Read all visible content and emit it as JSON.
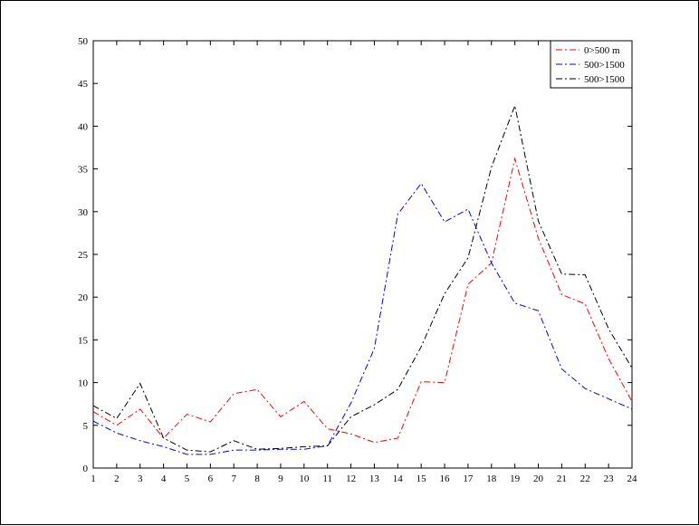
{
  "chart_data": {
    "type": "line",
    "title": "",
    "xlabel": "",
    "ylabel": "",
    "xlim": [
      1,
      24
    ],
    "ylim": [
      0,
      50
    ],
    "x": [
      1,
      2,
      3,
      4,
      5,
      6,
      7,
      8,
      9,
      10,
      11,
      12,
      13,
      14,
      15,
      16,
      17,
      18,
      19,
      20,
      21,
      22,
      23,
      24
    ],
    "x_ticks": [
      "1",
      "2",
      "3",
      "4",
      "5",
      "6",
      "7",
      "8",
      "9",
      "10",
      "11",
      "12",
      "13",
      "14",
      "15",
      "16",
      "17",
      "18",
      "19",
      "20",
      "21",
      "22",
      "23",
      "24"
    ],
    "y_ticks": [
      "0",
      "5",
      "10",
      "15",
      "20",
      "25",
      "30",
      "35",
      "40",
      "45",
      "50"
    ],
    "grid": false,
    "legend_position": "top-right",
    "series": [
      {
        "name": "0>500 m",
        "color": "#ff0000",
        "line_style": "dash-dot",
        "values": [
          6.6,
          5.0,
          6.9,
          3.5,
          6.3,
          5.4,
          8.7,
          9.2,
          6.0,
          7.8,
          4.6,
          4.0,
          3.0,
          3.5,
          10.1,
          10.0,
          21.5,
          24.0,
          36.2,
          26.9,
          20.3,
          19.2,
          12.8,
          7.8
        ]
      },
      {
        "name": "500>1500",
        "color": "#0000ff",
        "line_style": "dash-dot",
        "values": [
          5.5,
          4.1,
          3.2,
          2.5,
          1.6,
          1.6,
          2.1,
          2.1,
          2.2,
          2.2,
          2.6,
          7.6,
          14.0,
          29.7,
          33.3,
          28.8,
          30.3,
          24.0,
          19.3,
          18.4,
          11.6,
          9.3,
          8.1,
          6.9
        ]
      },
      {
        "name": "500>1500",
        "color": "#000000",
        "line_style": "dash-dot",
        "values": [
          7.3,
          5.8,
          9.9,
          3.5,
          2.1,
          1.9,
          3.2,
          2.2,
          2.3,
          2.5,
          2.6,
          6.0,
          7.4,
          9.2,
          14.2,
          20.4,
          24.6,
          35.2,
          42.4,
          28.9,
          22.7,
          22.6,
          16.3,
          11.7
        ]
      }
    ]
  }
}
